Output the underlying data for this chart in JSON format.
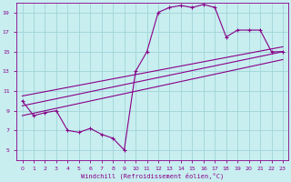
{
  "xlabel": "Windchill (Refroidissement éolien,°C)",
  "bg_color": "#c8eef0",
  "grid_color": "#a0d4d8",
  "line_color": "#880088",
  "spine_color": "#880088",
  "x_data": [
    0,
    1,
    2,
    3,
    4,
    5,
    6,
    7,
    8,
    9,
    10,
    11,
    12,
    13,
    14,
    15,
    16,
    17,
    18,
    19,
    20,
    21,
    22,
    23
  ],
  "y_data": [
    10.0,
    8.5,
    8.8,
    9.0,
    7.0,
    6.8,
    7.2,
    6.6,
    6.2,
    5.0,
    13.0,
    15.0,
    19.0,
    19.5,
    19.7,
    19.5,
    19.8,
    19.5,
    16.5,
    17.2,
    17.2,
    17.2,
    15.0,
    15.0
  ],
  "line1_x": [
    0,
    23
  ],
  "line1_y": [
    9.5,
    15.0
  ],
  "line2_x": [
    0,
    23
  ],
  "line2_y": [
    10.5,
    15.5
  ],
  "line3_x": [
    0,
    23
  ],
  "line3_y": [
    8.5,
    14.2
  ],
  "xlim": [
    -0.5,
    23.5
  ],
  "ylim": [
    4,
    20
  ],
  "yticks": [
    5,
    7,
    9,
    11,
    13,
    15,
    17,
    19
  ],
  "xticks": [
    0,
    1,
    2,
    3,
    4,
    5,
    6,
    7,
    8,
    9,
    10,
    11,
    12,
    13,
    14,
    15,
    16,
    17,
    18,
    19,
    20,
    21,
    22,
    23
  ]
}
